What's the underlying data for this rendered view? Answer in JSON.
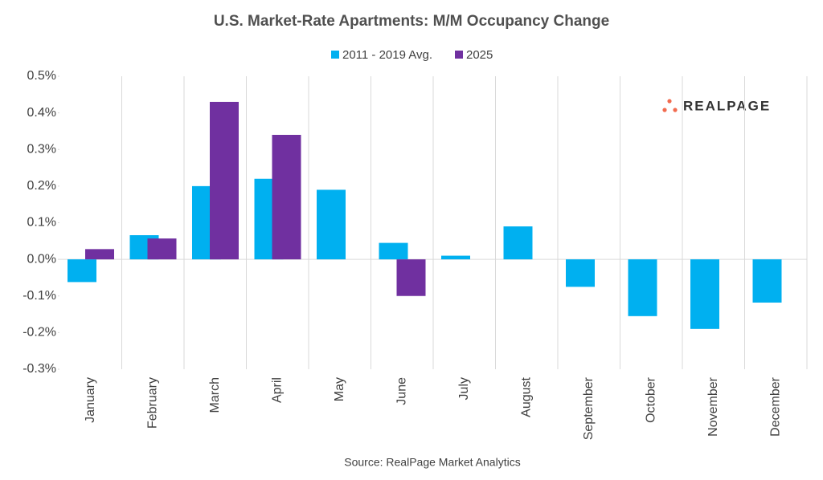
{
  "chart_data": {
    "type": "bar",
    "title": "U.S. Market-Rate Apartments: M/M Occupancy Change",
    "source": "Source: RealPage Market Analytics",
    "logo": "REALPAGE",
    "categories": [
      "January",
      "February",
      "March",
      "April",
      "May",
      "June",
      "July",
      "August",
      "September",
      "October",
      "November",
      "December"
    ],
    "series": [
      {
        "name": "2011 - 2019 Avg.",
        "color": "#00b0f0",
        "values": [
          -0.062,
          0.066,
          0.2,
          0.22,
          0.19,
          0.045,
          0.01,
          0.09,
          -0.075,
          -0.155,
          -0.19,
          -0.118
        ]
      },
      {
        "name": "2025",
        "color": "#7030a0",
        "values": [
          0.028,
          0.057,
          0.43,
          0.34,
          null,
          -0.1,
          null,
          null,
          null,
          null,
          null,
          null
        ]
      }
    ],
    "ylim": [
      -0.3,
      0.5
    ],
    "yticks": [
      {
        "value": -0.3,
        "label": "-0.3%"
      },
      {
        "value": -0.2,
        "label": "-0.2%"
      },
      {
        "value": -0.1,
        "label": "-0.1%"
      },
      {
        "value": 0,
        "label": "0.0%"
      },
      {
        "value": 0.1,
        "label": "0.1%"
      },
      {
        "value": 0.2,
        "label": "0.2%"
      },
      {
        "value": 0.3,
        "label": "0.3%"
      },
      {
        "value": 0.4,
        "label": "0.4%"
      },
      {
        "value": 0.5,
        "label": "0.5%"
      }
    ]
  }
}
